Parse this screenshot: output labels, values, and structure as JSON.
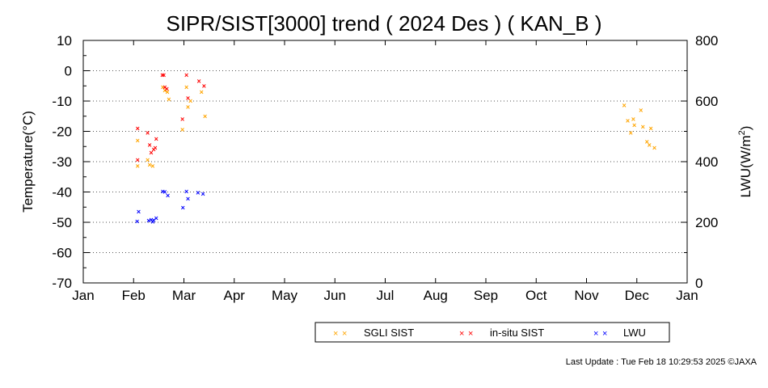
{
  "chart_data": {
    "type": "scatter",
    "title": "SIPR/SIST[3000] trend ( 2024 Des ) ( KAN_B )",
    "ylabel": "Temperature(°C)",
    "y2label": "LWU(W/m²)",
    "y2label_parts": [
      "LWU(W/m",
      "2",
      ")"
    ],
    "x_tick_labels": [
      "Jan",
      "Feb",
      "Mar",
      "Apr",
      "May",
      "Jun",
      "Jul",
      "Aug",
      "Sep",
      "Oct",
      "Nov",
      "Dec",
      "Jan"
    ],
    "x_unit": "month of year (0 = 1 Jan, 12 = 1 Jan next year)",
    "ylim": [
      -70,
      10
    ],
    "y_ticks": [
      10,
      0,
      -10,
      -20,
      -30,
      -40,
      -50,
      -60,
      -70
    ],
    "y2lim": [
      0,
      800
    ],
    "y2_ticks": [
      800,
      600,
      400,
      200,
      0
    ],
    "grid": "horizontal dotted",
    "legend_position": "bottom-right",
    "marker": "×",
    "series": [
      {
        "name": "SGLI SIST",
        "axis": "left",
        "color": "#ffa500",
        "points": [
          [
            1.08,
            -23
          ],
          [
            1.08,
            -31.5
          ],
          [
            1.28,
            -29.5
          ],
          [
            1.32,
            -31
          ],
          [
            1.38,
            -31.5
          ],
          [
            1.58,
            -5.5
          ],
          [
            1.62,
            -6.5
          ],
          [
            1.67,
            -7
          ],
          [
            1.7,
            -9.5
          ],
          [
            1.97,
            -19.5
          ],
          [
            2.05,
            -5.5
          ],
          [
            2.08,
            -12
          ],
          [
            2.13,
            -10
          ],
          [
            2.35,
            -7
          ],
          [
            2.42,
            -15
          ],
          [
            10.75,
            -11.5
          ],
          [
            10.82,
            -16.5
          ],
          [
            10.88,
            -20.5
          ],
          [
            10.93,
            -16
          ],
          [
            10.95,
            -18
          ],
          [
            11.08,
            -13
          ],
          [
            11.12,
            -18.5
          ],
          [
            11.2,
            -23.5
          ],
          [
            11.25,
            -24.5
          ],
          [
            11.28,
            -19
          ],
          [
            11.35,
            -25.5
          ]
        ]
      },
      {
        "name": "in-situ SIST",
        "axis": "left",
        "color": "#ff0000",
        "points": [
          [
            1.08,
            -19
          ],
          [
            1.08,
            -29.5
          ],
          [
            1.28,
            -20.5
          ],
          [
            1.32,
            -24.5
          ],
          [
            1.35,
            -27
          ],
          [
            1.4,
            -26
          ],
          [
            1.43,
            -25.5
          ],
          [
            1.45,
            -22.5
          ],
          [
            1.57,
            -1.5
          ],
          [
            1.6,
            -1.5
          ],
          [
            1.62,
            -5.5
          ],
          [
            1.66,
            -6
          ],
          [
            1.97,
            -16
          ],
          [
            2.05,
            -1.5
          ],
          [
            2.08,
            -9
          ],
          [
            2.3,
            -3.5
          ],
          [
            2.4,
            -5
          ]
        ]
      },
      {
        "name": "LWU",
        "axis": "right",
        "color": "#0000ff",
        "points": [
          [
            1.1,
            235
          ],
          [
            1.07,
            203
          ],
          [
            1.3,
            205
          ],
          [
            1.35,
            208
          ],
          [
            1.38,
            202
          ],
          [
            1.4,
            207
          ],
          [
            1.45,
            213
          ],
          [
            1.58,
            302
          ],
          [
            1.62,
            300
          ],
          [
            1.68,
            288
          ],
          [
            1.98,
            248
          ],
          [
            2.05,
            302
          ],
          [
            2.08,
            278
          ],
          [
            2.28,
            298
          ],
          [
            2.38,
            294
          ]
        ]
      }
    ]
  },
  "footer": {
    "last_update": "Last Update : Tue Feb 18 10:29:53 2025  ©JAXA"
  }
}
